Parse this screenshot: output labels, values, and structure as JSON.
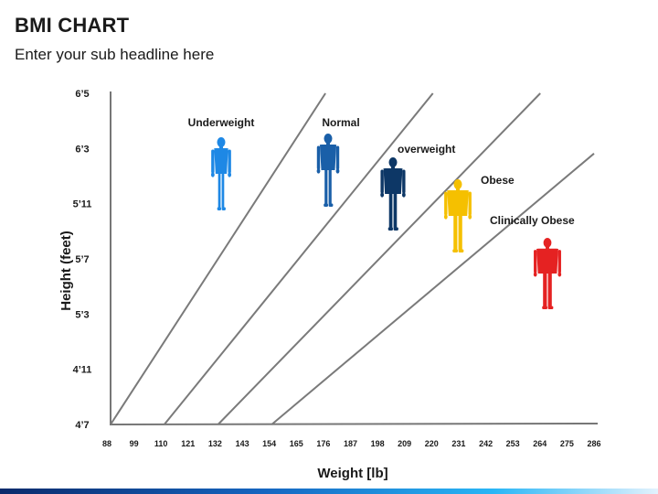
{
  "header": {
    "title": "BMI CHART",
    "subtitle": "Enter your sub headline here"
  },
  "chart_data": {
    "type": "line",
    "title": "",
    "xlabel": "Weight [lb]",
    "ylabel": "Height (feet)",
    "x_ticks": [
      "88",
      "99",
      "110",
      "121",
      "132",
      "143",
      "154",
      "165",
      "176",
      "187",
      "198",
      "209",
      "220",
      "231",
      "242",
      "253",
      "264",
      "275",
      "286"
    ],
    "y_ticks": [
      "4’7",
      "4’11",
      "5’3",
      "5’7",
      "5’11",
      "6’3",
      "6’5"
    ],
    "xlim": [
      88,
      286
    ],
    "grid": false,
    "boundaries": [
      {
        "from": [
          88,
          55
        ],
        "to": [
          176,
          77
        ]
      },
      {
        "from": [
          110,
          55
        ],
        "to": [
          220,
          77
        ]
      },
      {
        "from": [
          132,
          55
        ],
        "to": [
          264,
          77
        ]
      },
      {
        "from": [
          154,
          55
        ],
        "to": [
          286,
          73
        ]
      }
    ],
    "categories": [
      {
        "label": "Underweight",
        "color": "#1e88e5",
        "icon": "person-silhouette-slim"
      },
      {
        "label": "Normal",
        "color": "#1a5fa8",
        "icon": "person-silhouette"
      },
      {
        "label": "overweight",
        "color": "#0d3766",
        "icon": "person-silhouette-broad"
      },
      {
        "label": "Obese",
        "color": "#f5c000",
        "icon": "person-silhouette-heavy"
      },
      {
        "label": "Clinically Obese",
        "color": "#e52222",
        "icon": "person-silhouette-heavy"
      }
    ]
  }
}
